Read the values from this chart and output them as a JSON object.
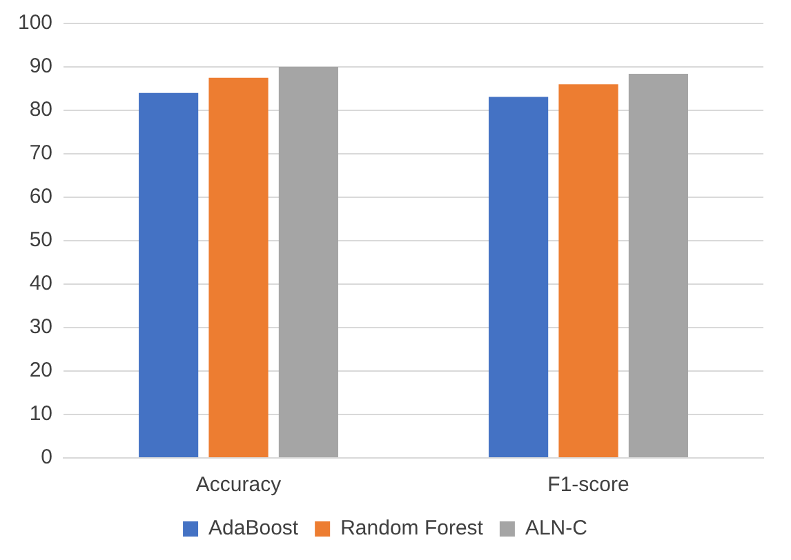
{
  "chart_data": {
    "type": "bar",
    "categories": [
      "Accuracy",
      "F1-score"
    ],
    "series": [
      {
        "name": "AdaBoost",
        "color": "#4472c4",
        "values": [
          84.0,
          83.1
        ]
      },
      {
        "name": "Random Forest",
        "color": "#ed7d31",
        "values": [
          87.5,
          86.0
        ]
      },
      {
        "name": "ALN-C",
        "color": "#a5a5a5",
        "values": [
          90.0,
          88.4
        ]
      }
    ],
    "ylim": [
      0,
      100
    ],
    "yticks": [
      0,
      10,
      20,
      30,
      40,
      50,
      60,
      70,
      80,
      90,
      100
    ],
    "grid": "y",
    "legend": "bottom"
  }
}
